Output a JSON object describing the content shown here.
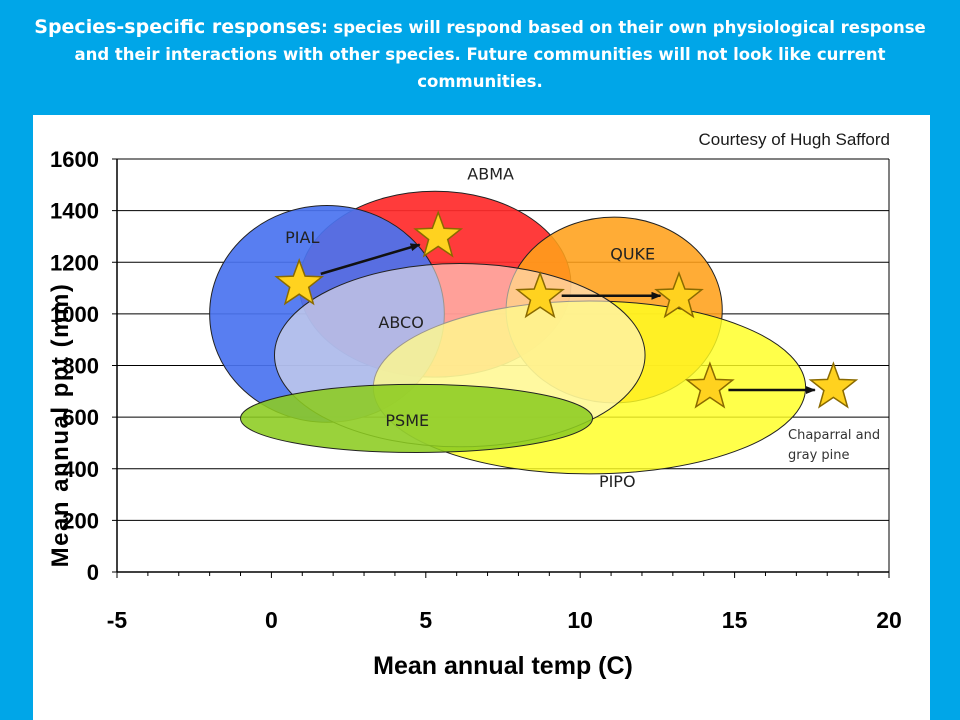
{
  "slide": {
    "title_lead": "Species-specific responses",
    "title_rest": ": species will respond based on their own physiological response and their interactions with other species.  Future communities will not look like current communities."
  },
  "credit": "Courtesy of Hugh Safford",
  "annotation": "Chaparral and gray pine",
  "chart_data": {
    "type": "scatter",
    "xlabel": "Mean annual temp (C)",
    "ylabel": "Mean annual ppt (mm)",
    "xlim": [
      -5,
      20
    ],
    "ylim": [
      0,
      1600
    ],
    "xticks": [
      -5,
      0,
      5,
      10,
      15,
      20
    ],
    "yticks": [
      0,
      200,
      400,
      600,
      800,
      1000,
      1200,
      1400,
      1600
    ],
    "grid": "horizontal",
    "species_ranges": [
      {
        "name": "ABMA",
        "cx": 5.3,
        "cy": 1115,
        "rx": 4.4,
        "ry": 360,
        "color": "#FF2A2A",
        "opacity": 0.92,
        "label_x": 7.1,
        "label_y": 1520
      },
      {
        "name": "PIAL",
        "cx": 1.8,
        "cy": 1000,
        "rx": 3.8,
        "ry": 420,
        "color": "#4A73F0",
        "opacity": 0.92,
        "label_x": 1.0,
        "label_y": 1275
      },
      {
        "name": "QUKE",
        "cx": 11.1,
        "cy": 1015,
        "rx": 3.5,
        "ry": 360,
        "color": "#FFA01A",
        "opacity": 0.88,
        "label_x": 11.7,
        "label_y": 1210
      },
      {
        "name": "PIPO",
        "cx": 10.3,
        "cy": 715,
        "rx": 7.0,
        "ry": 335,
        "color": "#FFFF22",
        "opacity": 0.82,
        "label_x": 11.2,
        "label_y": 330
      },
      {
        "name": "ABCO",
        "cx": 6.1,
        "cy": 840,
        "rx": 6.0,
        "ry": 355,
        "color": "#FFF4E8",
        "opacity": 0.55,
        "label_x": 4.2,
        "label_y": 945
      },
      {
        "name": "PSME",
        "cx": 4.7,
        "cy": 595,
        "rx": 5.7,
        "ry": 132,
        "color": "#8CCC20",
        "opacity": 0.88,
        "label_x": 4.4,
        "label_y": 565
      }
    ],
    "stars": [
      {
        "x": 0.9,
        "y": 1115
      },
      {
        "x": 5.4,
        "y": 1300
      },
      {
        "x": 8.7,
        "y": 1065
      },
      {
        "x": 13.2,
        "y": 1065
      },
      {
        "x": 14.2,
        "y": 715
      },
      {
        "x": 18.2,
        "y": 715
      }
    ],
    "shifts": [
      {
        "from": [
          1.6,
          1155
        ],
        "to": [
          4.8,
          1268
        ]
      },
      {
        "from": [
          9.4,
          1070
        ],
        "to": [
          12.6,
          1070
        ]
      },
      {
        "from": [
          14.8,
          705
        ],
        "to": [
          17.6,
          705
        ]
      }
    ]
  },
  "colors": {
    "background": "#00A6E8",
    "star_fill": "#FFD21F",
    "star_stroke": "#8A6A00",
    "grid": "#000000"
  }
}
